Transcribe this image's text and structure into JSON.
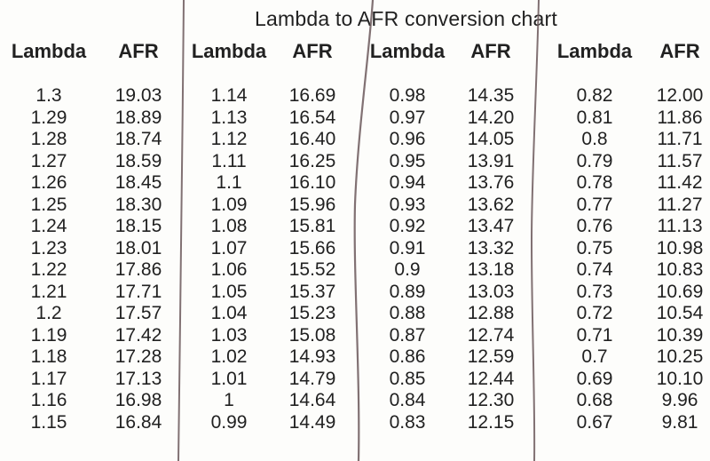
{
  "title": "Lambda to AFR conversion chart",
  "colors": {
    "paper": "#fdfdfb",
    "ink": "#212121",
    "pen_line": "#6b585b"
  },
  "table": {
    "groups": [
      {
        "headers": [
          "Lambda",
          "AFR"
        ],
        "rows": [
          [
            "1.3",
            "19.03"
          ],
          [
            "1.29",
            "18.89"
          ],
          [
            "1.28",
            "18.74"
          ],
          [
            "1.27",
            "18.59"
          ],
          [
            "1.26",
            "18.45"
          ],
          [
            "1.25",
            "18.30"
          ],
          [
            "1.24",
            "18.15"
          ],
          [
            "1.23",
            "18.01"
          ],
          [
            "1.22",
            "17.86"
          ],
          [
            "1.21",
            "17.71"
          ],
          [
            "1.2",
            "17.57"
          ],
          [
            "1.19",
            "17.42"
          ],
          [
            "1.18",
            "17.28"
          ],
          [
            "1.17",
            "17.13"
          ],
          [
            "1.16",
            "16.98"
          ],
          [
            "1.15",
            "16.84"
          ]
        ]
      },
      {
        "headers": [
          "Lambda",
          "AFR"
        ],
        "rows": [
          [
            "1.14",
            "16.69"
          ],
          [
            "1.13",
            "16.54"
          ],
          [
            "1.12",
            "16.40"
          ],
          [
            "1.11",
            "16.25"
          ],
          [
            "1.1",
            "16.10"
          ],
          [
            "1.09",
            "15.96"
          ],
          [
            "1.08",
            "15.81"
          ],
          [
            "1.07",
            "15.66"
          ],
          [
            "1.06",
            "15.52"
          ],
          [
            "1.05",
            "15.37"
          ],
          [
            "1.04",
            "15.23"
          ],
          [
            "1.03",
            "15.08"
          ],
          [
            "1.02",
            "14.93"
          ],
          [
            "1.01",
            "14.79"
          ],
          [
            "1",
            "14.64"
          ],
          [
            "0.99",
            "14.49"
          ]
        ]
      },
      {
        "headers": [
          "Lambda",
          "AFR"
        ],
        "rows": [
          [
            "0.98",
            "14.35"
          ],
          [
            "0.97",
            "14.20"
          ],
          [
            "0.96",
            "14.05"
          ],
          [
            "0.95",
            "13.91"
          ],
          [
            "0.94",
            "13.76"
          ],
          [
            "0.93",
            "13.62"
          ],
          [
            "0.92",
            "13.47"
          ],
          [
            "0.91",
            "13.32"
          ],
          [
            "0.9",
            "13.18"
          ],
          [
            "0.89",
            "13.03"
          ],
          [
            "0.88",
            "12.88"
          ],
          [
            "0.87",
            "12.74"
          ],
          [
            "0.86",
            "12.59"
          ],
          [
            "0.85",
            "12.44"
          ],
          [
            "0.84",
            "12.30"
          ],
          [
            "0.83",
            "12.15"
          ]
        ]
      },
      {
        "headers": [
          "Lambda",
          "AFR"
        ],
        "rows": [
          [
            "0.82",
            "12.00"
          ],
          [
            "0.81",
            "11.86"
          ],
          [
            "0.8",
            "11.71"
          ],
          [
            "0.79",
            "11.57"
          ],
          [
            "0.78",
            "11.42"
          ],
          [
            "0.77",
            "11.27"
          ],
          [
            "0.76",
            "11.13"
          ],
          [
            "0.75",
            "10.98"
          ],
          [
            "0.74",
            "10.83"
          ],
          [
            "0.73",
            "10.69"
          ],
          [
            "0.72",
            "10.54"
          ],
          [
            "0.71",
            "10.39"
          ],
          [
            "0.7",
            "10.25"
          ],
          [
            "0.69",
            "10.10"
          ],
          [
            "0.68",
            "9.96"
          ],
          [
            "0.67",
            "9.81"
          ]
        ]
      }
    ]
  }
}
